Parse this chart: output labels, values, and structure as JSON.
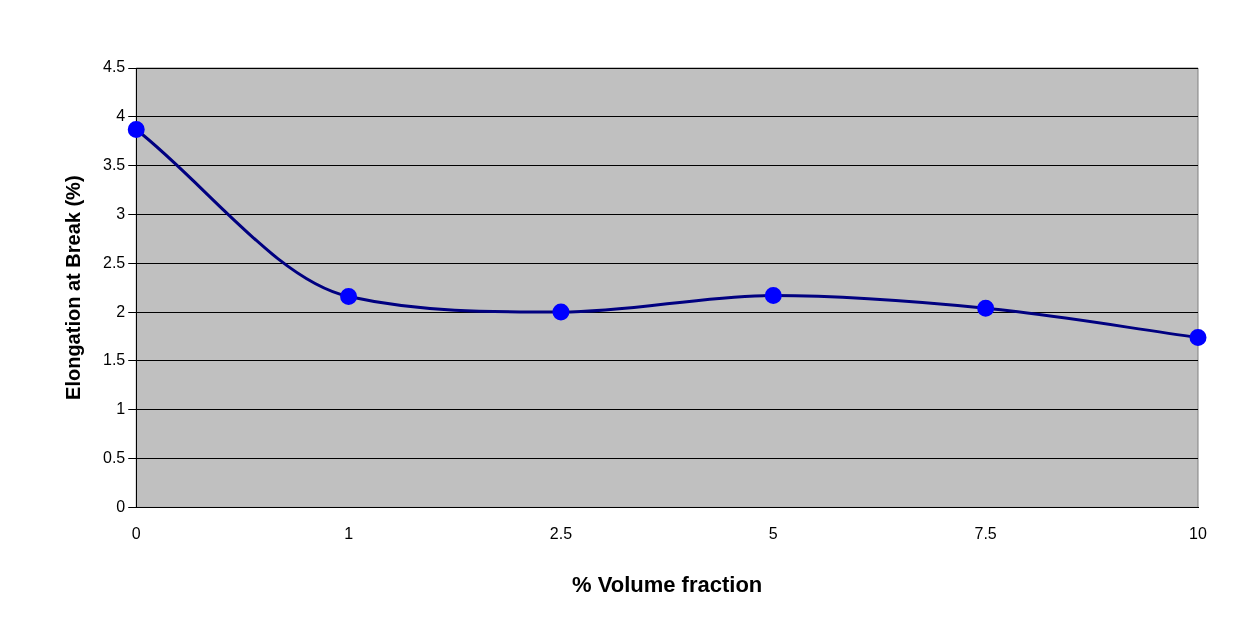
{
  "chart_data": {
    "type": "line",
    "xlabel": "% Volume fraction",
    "ylabel": "Elongation at Break (%)",
    "categories": [
      "0",
      "1",
      "2.5",
      "5",
      "7.5",
      "10"
    ],
    "series": [
      {
        "color": "#000080",
        "values": [
          3.87,
          2.16,
          2.0,
          2.17,
          2.04,
          1.74
        ]
      }
    ],
    "ylim": [
      0,
      4.5
    ],
    "yticks": [
      0,
      0.5,
      1,
      1.5,
      2,
      2.5,
      3,
      3.5,
      4,
      4.5
    ],
    "grid": "y",
    "marker": "circle",
    "line_style": "solid",
    "legend": false
  }
}
